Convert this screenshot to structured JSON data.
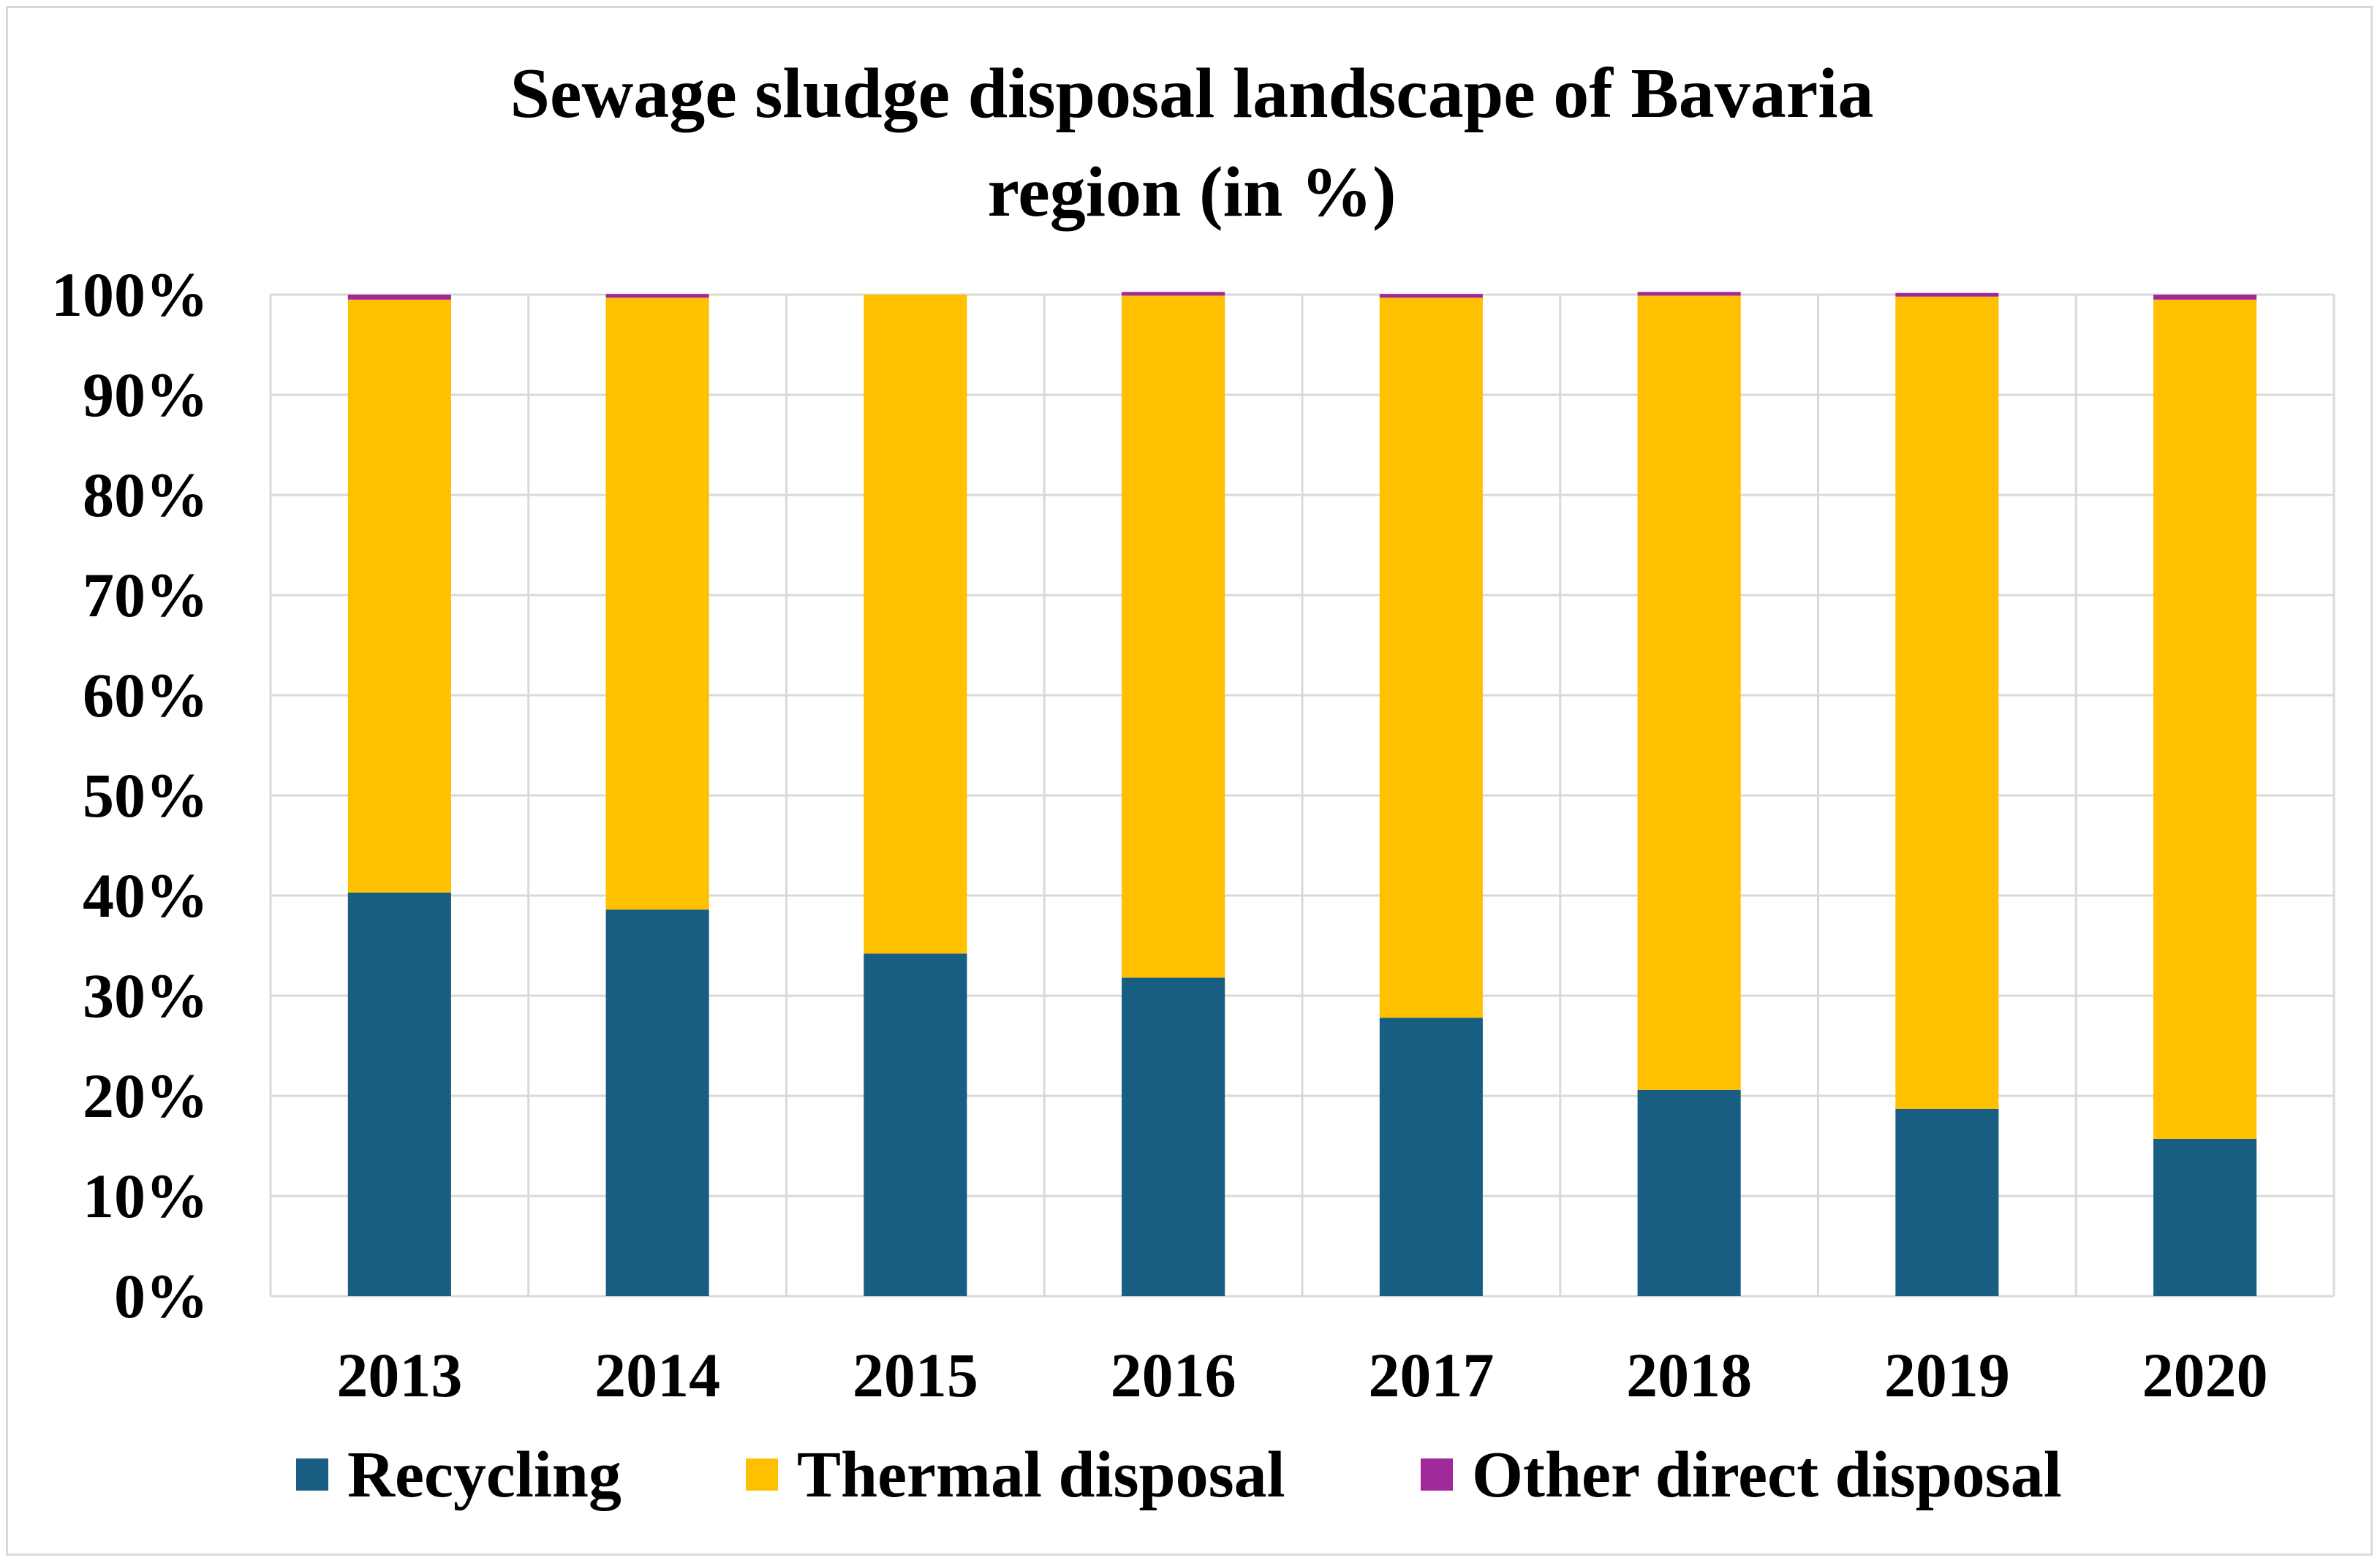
{
  "chart_data": {
    "type": "bar",
    "stacked": true,
    "title_lines": [
      "Sewage sludge disposal landscape of Bavaria",
      "region (in %)"
    ],
    "categories": [
      "2013",
      "2014",
      "2015",
      "2016",
      "2017",
      "2018",
      "2019",
      "2020"
    ],
    "series": [
      {
        "name": "Recycling",
        "color": "#175e82",
        "values": [
          40.3,
          38.6,
          34.2,
          31.8,
          27.8,
          20.6,
          18.7,
          15.7
        ]
      },
      {
        "name": "Thermal disposal",
        "color": "#ffc000",
        "values": [
          59.2,
          61.1,
          65.8,
          68.1,
          71.9,
          79.3,
          81.1,
          83.8
        ]
      },
      {
        "name": "Other direct disposal",
        "color": "#a0299a",
        "values": [
          0.5,
          0.3,
          0.0,
          0.1,
          0.3,
          0.1,
          0.2,
          0.5
        ]
      }
    ],
    "ylim": [
      0,
      100
    ],
    "y_ticks": [
      "0%",
      "10%",
      "20%",
      "30%",
      "40%",
      "50%",
      "60%",
      "70%",
      "80%",
      "90%",
      "100%"
    ],
    "grid": true,
    "legend_position": "bottom",
    "xlabel": "",
    "ylabel": ""
  }
}
